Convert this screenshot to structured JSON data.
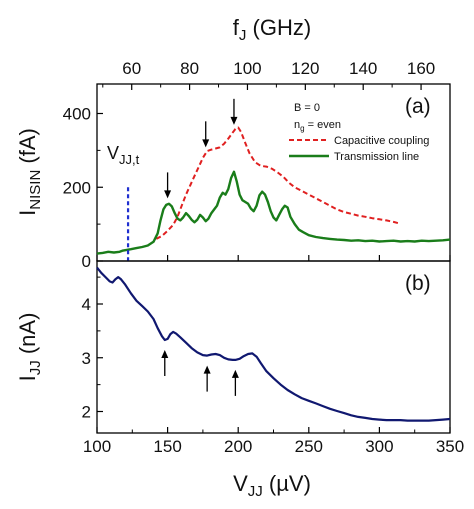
{
  "chart_data": [
    {
      "panel": "(a)",
      "type": "line",
      "ylabel": {
        "main": "I",
        "sub": "NISIN",
        "unit": " (fA)"
      },
      "top_xlabel": {
        "main": "f",
        "sub": "J",
        "unit": " (GHz)"
      },
      "ylim": [
        0,
        480
      ],
      "xlim": [
        100,
        350
      ],
      "yticks": [
        0,
        200,
        400
      ],
      "top_xticks": [
        60,
        80,
        100,
        120,
        140,
        160
      ],
      "top_xlim": [
        48,
        170
      ],
      "grid": false,
      "legend_position": "top-right",
      "annotations": {
        "line1": "B = 0",
        "line2_main": "n",
        "line2_sub": "g",
        "line2_rest": " = even"
      },
      "threshold": {
        "label_main": "V",
        "label_sub": "JJ,t",
        "x": 122,
        "y_top": 200,
        "color": "#1f2fd0"
      },
      "arrows_x": [
        150,
        177,
        197
      ],
      "series": [
        {
          "name": "Capacitive coupling",
          "style": "dashed",
          "color": "#e02020",
          "points": [
            [
              142,
              60
            ],
            [
              146,
              68
            ],
            [
              150,
              82
            ],
            [
              154,
              98
            ],
            [
              157,
              120
            ],
            [
              160,
              150
            ],
            [
              163,
              180
            ],
            [
              166,
              205
            ],
            [
              169,
              230
            ],
            [
              172,
              255
            ],
            [
              175,
              280
            ],
            [
              178,
              298
            ],
            [
              181,
              302
            ],
            [
              184,
              305
            ],
            [
              187,
              308
            ],
            [
              190,
              318
            ],
            [
              193,
              332
            ],
            [
              196,
              348
            ],
            [
              198,
              358
            ],
            [
              200,
              362
            ],
            [
              202,
              350
            ],
            [
              205,
              320
            ],
            [
              208,
              292
            ],
            [
              212,
              268
            ],
            [
              216,
              258
            ],
            [
              220,
              256
            ],
            [
              224,
              250
            ],
            [
              228,
              240
            ],
            [
              232,
              228
            ],
            [
              236,
              212
            ],
            [
              240,
              200
            ],
            [
              245,
              190
            ],
            [
              250,
              180
            ],
            [
              255,
              170
            ],
            [
              260,
              160
            ],
            [
              265,
              150
            ],
            [
              270,
              140
            ],
            [
              275,
              133
            ],
            [
              280,
              128
            ],
            [
              285,
              123
            ],
            [
              290,
              120
            ],
            [
              295,
              116
            ],
            [
              300,
              113
            ],
            [
              305,
              110
            ],
            [
              310,
              106
            ],
            [
              315,
              101
            ]
          ]
        },
        {
          "name": "Transmission line",
          "style": "solid",
          "color": "#1a7d1a",
          "points": [
            [
              100,
              20
            ],
            [
              104,
              22
            ],
            [
              108,
              25
            ],
            [
              112,
              23
            ],
            [
              116,
              25
            ],
            [
              118,
              28
            ],
            [
              121,
              30
            ],
            [
              124,
              32
            ],
            [
              128,
              35
            ],
            [
              132,
              38
            ],
            [
              136,
              42
            ],
            [
              140,
              52
            ],
            [
              143,
              75
            ],
            [
              145,
              110
            ],
            [
              147,
              140
            ],
            [
              149,
              152
            ],
            [
              151,
              155
            ],
            [
              153,
              148
            ],
            [
              155,
              130
            ],
            [
              157,
              115
            ],
            [
              159,
              110
            ],
            [
              161,
              118
            ],
            [
              163,
              130
            ],
            [
              165,
              122
            ],
            [
              167,
              112
            ],
            [
              169,
              105
            ],
            [
              171,
              112
            ],
            [
              173,
              125
            ],
            [
              175,
              118
            ],
            [
              177,
              108
            ],
            [
              179,
              115
            ],
            [
              181,
              130
            ],
            [
              183,
              140
            ],
            [
              185,
              150
            ],
            [
              187,
              172
            ],
            [
              189,
              185
            ],
            [
              191,
              180
            ],
            [
              193,
              195
            ],
            [
              195,
              225
            ],
            [
              197,
              242
            ],
            [
              199,
              215
            ],
            [
              201,
              180
            ],
            [
              203,
              165
            ],
            [
              205,
              160
            ],
            [
              207,
              155
            ],
            [
              209,
              142
            ],
            [
              211,
              135
            ],
            [
              213,
              150
            ],
            [
              215,
              178
            ],
            [
              217,
              188
            ],
            [
              219,
              180
            ],
            [
              221,
              160
            ],
            [
              223,
              135
            ],
            [
              225,
              118
            ],
            [
              227,
              110
            ],
            [
              229,
              125
            ],
            [
              231,
              140
            ],
            [
              233,
              150
            ],
            [
              235,
              145
            ],
            [
              237,
              120
            ],
            [
              240,
              100
            ],
            [
              243,
              85
            ],
            [
              246,
              78
            ],
            [
              250,
              70
            ],
            [
              255,
              65
            ],
            [
              260,
              62
            ],
            [
              265,
              60
            ],
            [
              270,
              58
            ],
            [
              275,
              57
            ],
            [
              280,
              55
            ],
            [
              285,
              56
            ],
            [
              290,
              54
            ],
            [
              295,
              55
            ],
            [
              300,
              53
            ],
            [
              305,
              54
            ],
            [
              310,
              55
            ],
            [
              315,
              53
            ],
            [
              320,
              54
            ],
            [
              325,
              53
            ],
            [
              330,
              55
            ],
            [
              335,
              54
            ],
            [
              340,
              55
            ],
            [
              345,
              56
            ],
            [
              350,
              58
            ]
          ]
        }
      ]
    },
    {
      "panel": "(b)",
      "type": "line",
      "ylabel": {
        "main": "I",
        "sub": "JJ",
        "unit": " (nA)"
      },
      "xlabel": {
        "main": "V",
        "sub": "JJ",
        "unit": " (µV)"
      },
      "xlim": [
        100,
        350
      ],
      "ylim": [
        1.6,
        4.8
      ],
      "xticks": [
        100,
        150,
        200,
        250,
        300,
        350
      ],
      "yticks": [
        2,
        3,
        4
      ],
      "grid": false,
      "arrows_x": [
        148,
        178,
        198
      ],
      "series": [
        {
          "name": "",
          "style": "solid",
          "color": "#101870",
          "points": [
            [
              100,
              4.68
            ],
            [
              103,
              4.58
            ],
            [
              106,
              4.5
            ],
            [
              109,
              4.42
            ],
            [
              111,
              4.4
            ],
            [
              113,
              4.46
            ],
            [
              115,
              4.5
            ],
            [
              117,
              4.46
            ],
            [
              120,
              4.36
            ],
            [
              124,
              4.2
            ],
            [
              128,
              4.06
            ],
            [
              132,
              3.96
            ],
            [
              136,
              3.86
            ],
            [
              140,
              3.72
            ],
            [
              143,
              3.55
            ],
            [
              146,
              3.4
            ],
            [
              148,
              3.33
            ],
            [
              150,
              3.35
            ],
            [
              152,
              3.44
            ],
            [
              154,
              3.48
            ],
            [
              156,
              3.45
            ],
            [
              159,
              3.38
            ],
            [
              163,
              3.28
            ],
            [
              167,
              3.18
            ],
            [
              171,
              3.1
            ],
            [
              175,
              3.05
            ],
            [
              178,
              3.04
            ],
            [
              181,
              3.06
            ],
            [
              184,
              3.07
            ],
            [
              187,
              3.05
            ],
            [
              190,
              3.0
            ],
            [
              193,
              2.97
            ],
            [
              196,
              2.96
            ],
            [
              198,
              2.96
            ],
            [
              201,
              2.98
            ],
            [
              204,
              3.03
            ],
            [
              207,
              3.07
            ],
            [
              210,
              3.08
            ],
            [
              213,
              3.02
            ],
            [
              216,
              2.9
            ],
            [
              220,
              2.75
            ],
            [
              225,
              2.62
            ],
            [
              230,
              2.5
            ],
            [
              235,
              2.4
            ],
            [
              240,
              2.32
            ],
            [
              245,
              2.25
            ],
            [
              250,
              2.2
            ],
            [
              255,
              2.15
            ],
            [
              260,
              2.1
            ],
            [
              265,
              2.05
            ],
            [
              270,
              2.01
            ],
            [
              275,
              1.97
            ],
            [
              280,
              1.93
            ],
            [
              285,
              1.9
            ],
            [
              290,
              1.88
            ],
            [
              295,
              1.86
            ],
            [
              300,
              1.85
            ],
            [
              305,
              1.84
            ],
            [
              310,
              1.84
            ],
            [
              315,
              1.84
            ],
            [
              320,
              1.83
            ],
            [
              325,
              1.83
            ],
            [
              330,
              1.83
            ],
            [
              335,
              1.83
            ],
            [
              340,
              1.84
            ],
            [
              345,
              1.85
            ],
            [
              350,
              1.86
            ]
          ]
        }
      ]
    }
  ]
}
